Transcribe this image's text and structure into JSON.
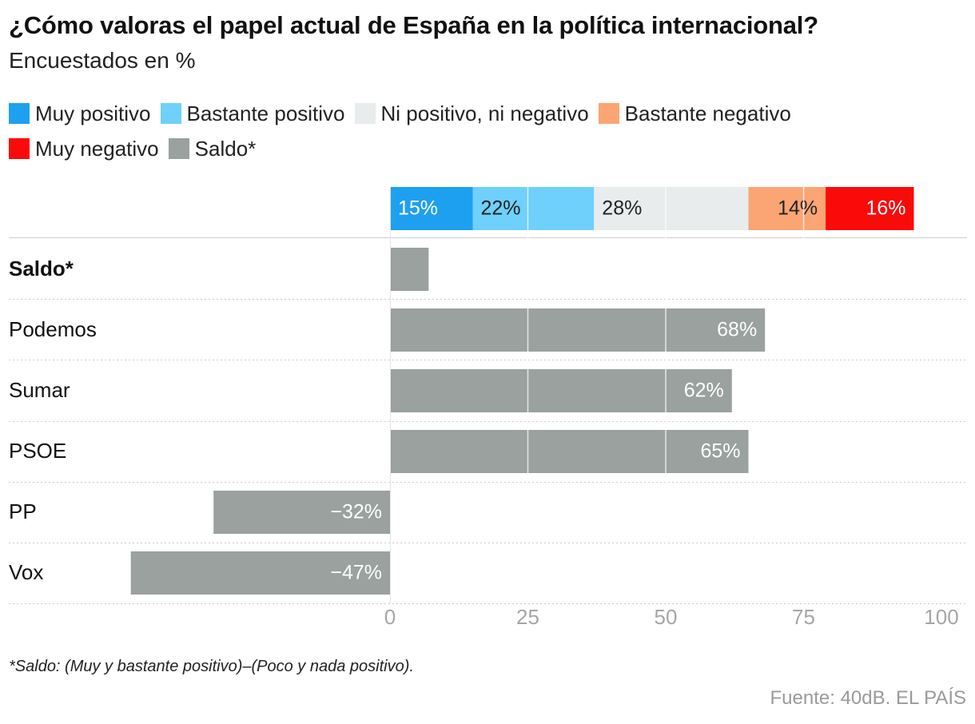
{
  "title": "¿Cómo valoras el papel actual de España en la política internacional?",
  "subtitle": "Encuestados en %",
  "legend": [
    {
      "label": "Muy positivo",
      "color": "#1ea0f0"
    },
    {
      "label": "Bastante positivo",
      "color": "#6fd0fb"
    },
    {
      "label": "Ni positivo, ni negativo",
      "color": "#e9ecec"
    },
    {
      "label": "Bastante negativo",
      "color": "#fba574"
    },
    {
      "label": "Muy negativo",
      "color": "#fb0a0a"
    },
    {
      "label": "Saldo*",
      "color": "#9aa19f"
    }
  ],
  "chart_data": [
    {
      "type": "bar",
      "stacked": true,
      "orientation": "horizontal",
      "series": [
        {
          "name": "Muy positivo",
          "values": [
            15
          ],
          "label": "15%",
          "color": "#1ea0f0"
        },
        {
          "name": "Bastante positivo",
          "values": [
            22
          ],
          "label": "22%",
          "color": "#6fd0fb"
        },
        {
          "name": "Ni positivo, ni negativo",
          "values": [
            28
          ],
          "label": "28%",
          "color": "#e9ecec"
        },
        {
          "name": "Bastante negativo",
          "values": [
            14
          ],
          "label": "14%",
          "color": "#fba574"
        },
        {
          "name": "Muy negativo",
          "values": [
            16
          ],
          "label": "16%",
          "color": "#fb0a0a"
        }
      ]
    },
    {
      "type": "bar",
      "orientation": "horizontal",
      "categories": [
        "Saldo*",
        "Podemos",
        "Sumar",
        "PSOE",
        "PP",
        "Vox"
      ],
      "values": [
        7,
        68,
        62,
        65,
        -32,
        -47
      ],
      "value_labels": [
        "",
        "68%",
        "62%",
        "65%",
        "−32%",
        "−47%"
      ],
      "bold_categories": [
        "Saldo*"
      ],
      "color": "#9aa19f",
      "xlim": [
        -50,
        100
      ],
      "xticks": [
        0,
        25,
        50,
        75,
        100
      ],
      "grid": true,
      "legend": "top"
    }
  ],
  "footnote": "*Saldo: (Muy y bastante positivo)–(Poco y nada positivo).",
  "source": "Fuente: 40dB. EL PAÍS"
}
